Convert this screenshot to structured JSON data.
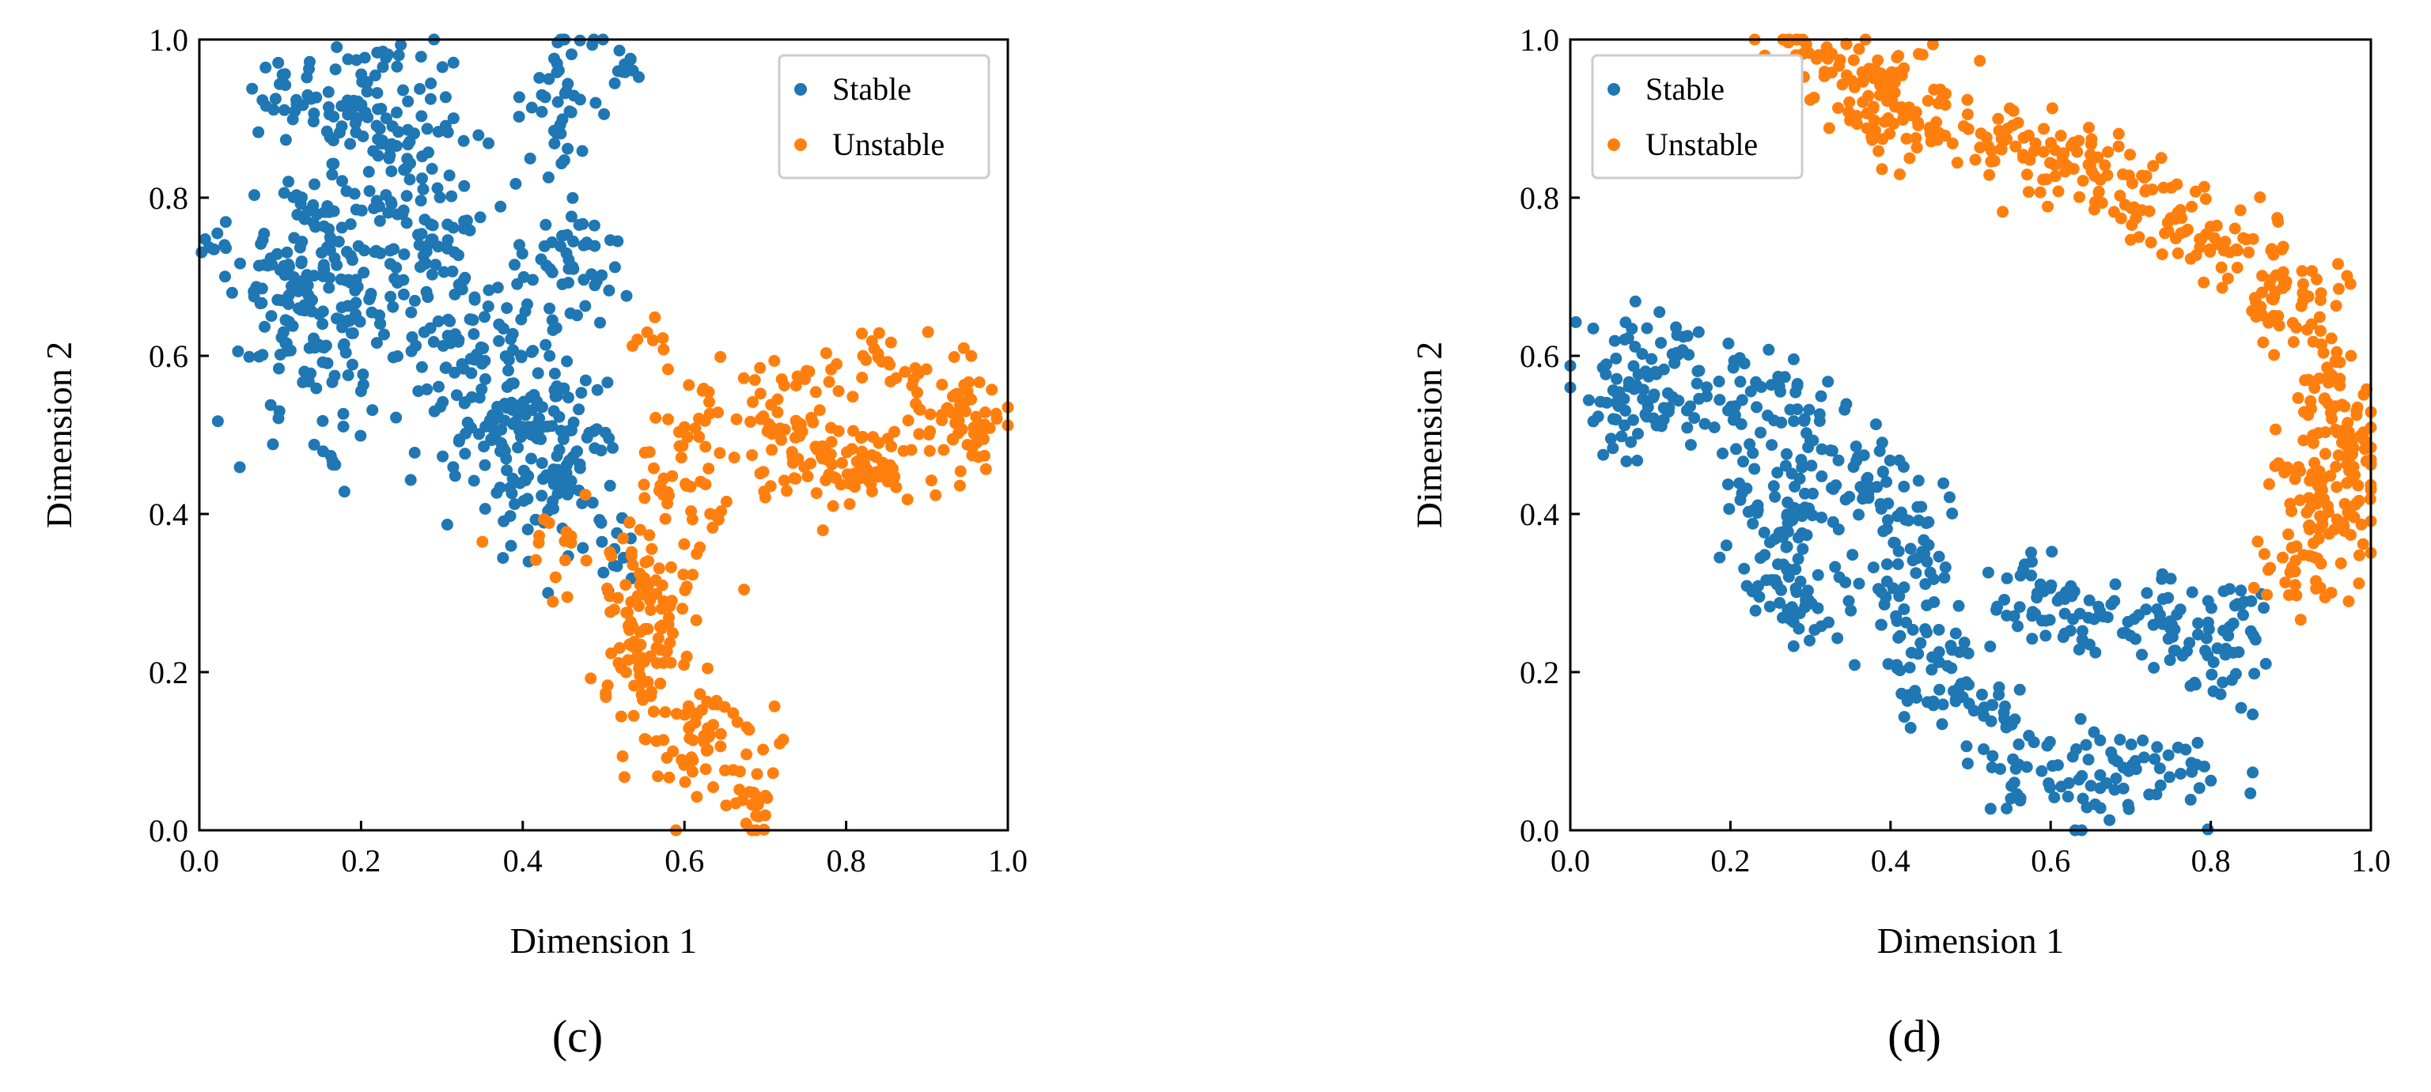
{
  "chart_data": [
    {
      "type": "scatter",
      "panel_label": "(c)",
      "xlabel": "Dimension 1",
      "ylabel": "Dimension 2",
      "xlim": [
        0.0,
        1.0
      ],
      "ylim": [
        0.0,
        1.0
      ],
      "xticks": [
        "0.0",
        "0.2",
        "0.4",
        "0.6",
        "0.8",
        "1.0"
      ],
      "yticks": [
        "0.0",
        "0.2",
        "0.4",
        "0.6",
        "0.8",
        "1.0"
      ],
      "legend_position": "top-right",
      "series": [
        {
          "name": "Stable",
          "color": "#1f77b4",
          "clusters": [
            {
              "cx": 0.14,
              "cy": 0.68,
              "sx": 0.045,
              "sy": 0.08,
              "n": 190
            },
            {
              "cx": 0.27,
              "cy": 0.76,
              "sx": 0.055,
              "sy": 0.1,
              "n": 140
            },
            {
              "cx": 0.2,
              "cy": 0.92,
              "sx": 0.04,
              "sy": 0.035,
              "n": 60
            },
            {
              "cx": 0.11,
              "cy": 0.94,
              "sx": 0.02,
              "sy": 0.025,
              "n": 20
            },
            {
              "cx": 0.45,
              "cy": 0.93,
              "sx": 0.025,
              "sy": 0.05,
              "n": 45
            },
            {
              "cx": 0.53,
              "cy": 0.96,
              "sx": 0.01,
              "sy": 0.015,
              "n": 10
            },
            {
              "cx": 0.35,
              "cy": 0.58,
              "sx": 0.05,
              "sy": 0.08,
              "n": 110
            },
            {
              "cx": 0.43,
              "cy": 0.48,
              "sx": 0.045,
              "sy": 0.06,
              "n": 130
            },
            {
              "cx": 0.47,
              "cy": 0.72,
              "sx": 0.03,
              "sy": 0.045,
              "n": 45
            },
            {
              "cx": 0.02,
              "cy": 0.74,
              "sx": 0.012,
              "sy": 0.015,
              "n": 8
            },
            {
              "cx": 0.52,
              "cy": 0.36,
              "sx": 0.02,
              "sy": 0.03,
              "n": 14
            }
          ]
        },
        {
          "name": "Unstable",
          "color": "#ff7f0e",
          "clusters": [
            {
              "cx": 0.8,
              "cy": 0.46,
              "sx": 0.055,
              "sy": 0.025,
              "n": 90
            },
            {
              "cx": 0.94,
              "cy": 0.52,
              "sx": 0.035,
              "sy": 0.04,
              "n": 65
            },
            {
              "cx": 0.72,
              "cy": 0.52,
              "sx": 0.035,
              "sy": 0.04,
              "n": 45
            },
            {
              "cx": 0.85,
              "cy": 0.58,
              "sx": 0.04,
              "sy": 0.025,
              "n": 30
            },
            {
              "cx": 0.6,
              "cy": 0.44,
              "sx": 0.035,
              "sy": 0.06,
              "n": 60
            },
            {
              "cx": 0.55,
              "cy": 0.24,
              "sx": 0.03,
              "sy": 0.07,
              "n": 110
            },
            {
              "cx": 0.63,
              "cy": 0.11,
              "sx": 0.035,
              "sy": 0.035,
              "n": 55
            },
            {
              "cx": 0.68,
              "cy": 0.03,
              "sx": 0.015,
              "sy": 0.025,
              "n": 20
            },
            {
              "cx": 0.46,
              "cy": 0.36,
              "sx": 0.04,
              "sy": 0.025,
              "n": 18
            },
            {
              "cx": 0.56,
              "cy": 0.63,
              "sx": 0.01,
              "sy": 0.012,
              "n": 6
            }
          ]
        }
      ]
    },
    {
      "type": "scatter",
      "panel_label": "(d)",
      "xlabel": "Dimension 1",
      "ylabel": "Dimension 2",
      "xlim": [
        0.0,
        1.0
      ],
      "ylim": [
        0.0,
        1.0
      ],
      "xticks": [
        "0.0",
        "0.2",
        "0.4",
        "0.6",
        "0.8",
        "1.0"
      ],
      "yticks": [
        "0.0",
        "0.2",
        "0.4",
        "0.6",
        "0.8",
        "1.0"
      ],
      "legend_position": "top-left",
      "series": [
        {
          "name": "Stable",
          "color": "#1f77b4",
          "path": [
            [
              0.0,
              0.59
            ],
            [
              0.08,
              0.57
            ],
            [
              0.16,
              0.58
            ],
            [
              0.24,
              0.54
            ],
            [
              0.3,
              0.5
            ],
            [
              0.36,
              0.46
            ],
            [
              0.41,
              0.4
            ],
            [
              0.41,
              0.31
            ],
            [
              0.43,
              0.24
            ],
            [
              0.46,
              0.2
            ],
            [
              0.5,
              0.13
            ],
            [
              0.55,
              0.07
            ],
            [
              0.6,
              0.06
            ],
            [
              0.66,
              0.05
            ],
            [
              0.72,
              0.07
            ],
            [
              0.79,
              0.08
            ]
          ],
          "path_spread": 0.035,
          "path_n": 380,
          "clusters": [
            {
              "cx": 0.27,
              "cy": 0.36,
              "sx": 0.035,
              "sy": 0.06,
              "n": 80
            },
            {
              "cx": 0.3,
              "cy": 0.27,
              "sx": 0.02,
              "sy": 0.03,
              "n": 20
            },
            {
              "cx": 0.58,
              "cy": 0.29,
              "sx": 0.025,
              "sy": 0.03,
              "n": 35
            },
            {
              "cx": 0.68,
              "cy": 0.27,
              "sx": 0.035,
              "sy": 0.025,
              "n": 35
            },
            {
              "cx": 0.76,
              "cy": 0.25,
              "sx": 0.02,
              "sy": 0.04,
              "n": 30
            },
            {
              "cx": 0.82,
              "cy": 0.23,
              "sx": 0.02,
              "sy": 0.04,
              "n": 30
            },
            {
              "cx": 0.84,
              "cy": 0.29,
              "sx": 0.015,
              "sy": 0.02,
              "n": 12
            },
            {
              "cx": 0.09,
              "cy": 0.53,
              "sx": 0.03,
              "sy": 0.04,
              "n": 30
            },
            {
              "cx": 0.21,
              "cy": 0.44,
              "sx": 0.02,
              "sy": 0.02,
              "n": 12
            }
          ]
        },
        {
          "name": "Unstable",
          "color": "#ff7f0e",
          "path": [
            [
              0.28,
              0.99
            ],
            [
              0.35,
              0.95
            ],
            [
              0.42,
              0.92
            ],
            [
              0.5,
              0.89
            ],
            [
              0.58,
              0.86
            ],
            [
              0.66,
              0.83
            ],
            [
              0.74,
              0.79
            ],
            [
              0.81,
              0.75
            ],
            [
              0.87,
              0.71
            ],
            [
              0.91,
              0.66
            ],
            [
              0.94,
              0.6
            ],
            [
              0.96,
              0.52
            ],
            [
              0.97,
              0.45
            ],
            [
              0.96,
              0.39
            ],
            [
              0.93,
              0.34
            ],
            [
              0.88,
              0.31
            ]
          ],
          "path_spread": 0.028,
          "path_n": 460,
          "clusters": [
            {
              "cx": 0.93,
              "cy": 0.45,
              "sx": 0.03,
              "sy": 0.06,
              "n": 40
            },
            {
              "cx": 0.38,
              "cy": 0.92,
              "sx": 0.04,
              "sy": 0.03,
              "n": 30
            }
          ]
        }
      ]
    }
  ]
}
